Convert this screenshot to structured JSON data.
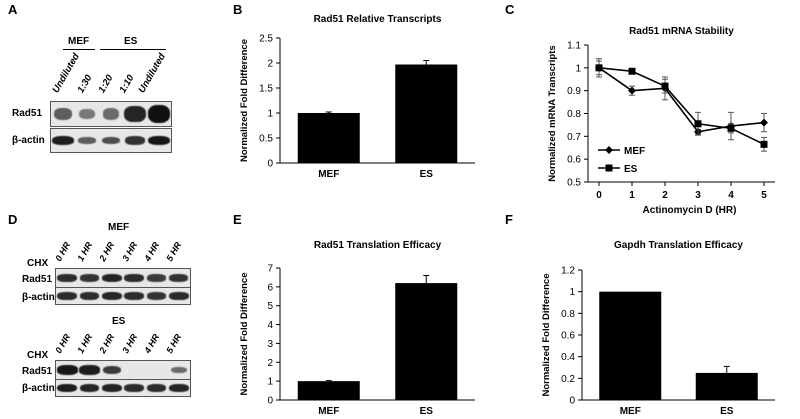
{
  "panel_letters": {
    "A": "A",
    "B": "B",
    "C": "C",
    "D": "D",
    "E": "E",
    "F": "F"
  },
  "blot_a": {
    "group_mef": "MEF",
    "group_es": "ES",
    "lanes": [
      "Undiluted",
      "1:30",
      "1:20",
      "1:10",
      "Undiluted"
    ],
    "row1": "Rad51",
    "row2": "β-actin",
    "rad51_intensity": [
      0.45,
      0.25,
      0.35,
      0.85,
      1.0
    ],
    "actin_intensity": [
      0.9,
      0.45,
      0.55,
      0.75,
      0.95
    ]
  },
  "blot_d": {
    "mef_title": "MEF",
    "es_title": "ES",
    "treatment": "CHX",
    "lanes": [
      "0 HR",
      "1 HR",
      "2 HR",
      "3 HR",
      "4 HR",
      "5 HR"
    ],
    "row1": "Rad51",
    "row2": "β-actin",
    "mef_rad51": [
      0.8,
      0.75,
      0.85,
      0.8,
      0.7,
      0.75
    ],
    "mef_actin": [
      0.8,
      0.8,
      0.85,
      0.8,
      0.75,
      0.8
    ],
    "es_rad51": [
      0.95,
      0.9,
      0.7,
      0.0,
      0.0,
      0.35
    ],
    "es_actin": [
      0.9,
      0.85,
      0.85,
      0.8,
      0.8,
      0.85
    ]
  },
  "chart_data": [
    {
      "id": "B",
      "type": "bar",
      "title": "Rad51 Relative Transcripts",
      "ylabel": "Normalized Fold Difference",
      "xlabel": "",
      "categories": [
        "MEF",
        "ES"
      ],
      "values": [
        1.0,
        1.97
      ],
      "errors": [
        0.02,
        0.08
      ],
      "ylim": [
        0,
        2.5
      ],
      "yticks": [
        "0",
        "0.5",
        "1",
        "1.5",
        "2",
        "2.5"
      ],
      "ytick_values": [
        0,
        0.5,
        1,
        1.5,
        2,
        2.5
      ],
      "bar_color": "#000000"
    },
    {
      "id": "C",
      "type": "line",
      "title": "Rad51 mRNA Stability",
      "ylabel": "Normalized mRNA Transcripts",
      "xlabel": "Actinomycin D (HR)",
      "x": [
        0,
        1,
        2,
        3,
        4,
        5
      ],
      "xticks": [
        "0",
        "1",
        "2",
        "3",
        "4",
        "5"
      ],
      "ylim": [
        0.5,
        1.1
      ],
      "yticks": [
        "0.5",
        "0.6",
        "0.7",
        "0.8",
        "0.9",
        "1",
        "1.1"
      ],
      "ytick_values": [
        0.5,
        0.6,
        0.7,
        0.8,
        0.9,
        1.0,
        1.1
      ],
      "legend_position": "left",
      "series": [
        {
          "name": "MEF",
          "marker": "diamond",
          "values": [
            1.0,
            0.9,
            0.91,
            0.72,
            0.745,
            0.76
          ],
          "errors": [
            0.04,
            0.02,
            0.05,
            0.01,
            0.06,
            0.04
          ]
        },
        {
          "name": "ES",
          "marker": "square",
          "values": [
            1.0,
            0.985,
            0.92,
            0.755,
            0.735,
            0.665
          ],
          "errors": [
            0.03,
            0.01,
            0.03,
            0.05,
            0.02,
            0.03
          ]
        }
      ]
    },
    {
      "id": "E",
      "type": "bar",
      "title": "Rad51 Translation Efficacy",
      "ylabel": "Normalized Fold Difference",
      "xlabel": "",
      "categories": [
        "MEF",
        "ES"
      ],
      "values": [
        1.0,
        6.2
      ],
      "errors": [
        0.03,
        0.4
      ],
      "ylim": [
        0,
        7
      ],
      "yticks": [
        "0",
        "1",
        "2",
        "3",
        "4",
        "5",
        "6",
        "7"
      ],
      "ytick_values": [
        0,
        1,
        2,
        3,
        4,
        5,
        6,
        7
      ],
      "bar_color": "#000000"
    },
    {
      "id": "F",
      "type": "bar",
      "title": "Gapdh Translation Efficacy",
      "ylabel": "Normalized Fold Difference",
      "xlabel": "",
      "categories": [
        "MEF",
        "ES"
      ],
      "values": [
        1.0,
        0.25
      ],
      "errors": [
        0.0,
        0.06
      ],
      "ylim": [
        0,
        1.2
      ],
      "yticks": [
        "0",
        "0.2",
        "0.4",
        "0.6",
        "0.8",
        "1",
        "1.2"
      ],
      "ytick_values": [
        0,
        0.2,
        0.4,
        0.6,
        0.8,
        1.0,
        1.2
      ],
      "bar_color": "#000000"
    }
  ]
}
